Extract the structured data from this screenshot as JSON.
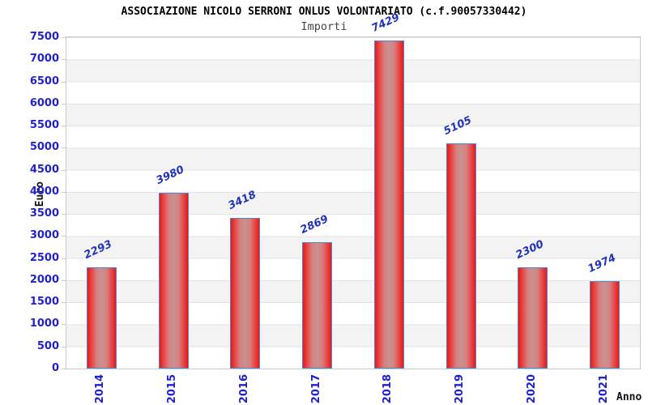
{
  "chart_data": {
    "type": "bar",
    "title": "ASSOCIAZIONE NICOLO SERRONI ONLUS VOLONTARIATO (c.f.90057330442)",
    "subtitle": "Importi",
    "xlabel": "Anno",
    "ylabel": "Euro",
    "categories": [
      "2014",
      "2015",
      "2016",
      "2017",
      "2018",
      "2019",
      "2020",
      "2021"
    ],
    "values": [
      2293,
      3980,
      3418,
      2869,
      7429,
      5105,
      2300,
      1974
    ],
    "ylim": [
      0,
      7500
    ],
    "ytick_step": 500,
    "grid": "horizontal-bands",
    "legend": "none",
    "colors": {
      "bar_edge_red": "#ee1616",
      "bar_center": "#c79292",
      "bar_border_blue": "#4d8ad5",
      "axis_label_blue": "#2222cc",
      "value_label_blue": "#2233bb",
      "band_gray": "#f3f3f3",
      "gridline": "#e3e3e3",
      "plot_border": "#c9c9c9",
      "title_color": "#000000",
      "subtitle_color": "#444444"
    }
  }
}
